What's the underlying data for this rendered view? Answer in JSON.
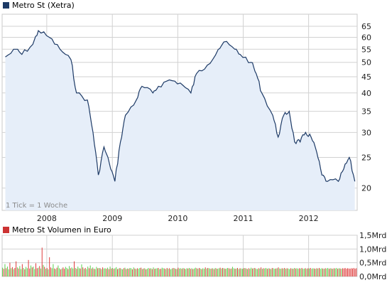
{
  "price_legend": "Metro St (Xetra)",
  "volume_legend": "Metro St Volumen in Euro",
  "tick_note": "1 Tick = 1 Woche",
  "colors": {
    "price_line": "#1d3a66",
    "price_fill": "#e6eef9",
    "volume_up": "#55cc44",
    "volume_down": "#dd3333",
    "grid": "#d2d2d2",
    "plot_bg": "#ffffff",
    "legend_price_swatch": "#1d3a66",
    "legend_volume_swatch": "#cc3333"
  },
  "chart_data": [
    {
      "type": "area",
      "title": "Metro St (Xetra)",
      "x_tick_labels": [
        "2008",
        "2009",
        "2010",
        "2011",
        "2012"
      ],
      "y_scale": "log",
      "y_ticks": [
        20,
        25,
        30,
        35,
        40,
        45,
        50,
        55,
        60,
        65
      ],
      "ylim": [
        17,
        71
      ],
      "xlim": [
        "2007-04-27",
        "2012-09-28"
      ],
      "grid": true,
      "x": [
        "2007-05",
        "2007-07",
        "2007-08",
        "2007-10",
        "2007-11",
        "2008-01",
        "2008-03",
        "2008-05",
        "2008-06",
        "2008-08",
        "2008-09",
        "2008-10",
        "2008-11",
        "2008-12",
        "2009-01",
        "2009-02",
        "2009-03",
        "2009-05",
        "2009-06",
        "2009-08",
        "2009-09",
        "2009-11",
        "2010-01",
        "2010-03",
        "2010-04",
        "2010-06",
        "2010-08",
        "2010-09",
        "2010-11",
        "2010-12",
        "2011-02",
        "2011-03",
        "2011-04",
        "2011-06",
        "2011-07",
        "2011-08",
        "2011-09",
        "2011-10",
        "2011-11",
        "2011-12",
        "2012-01",
        "2012-02",
        "2012-03",
        "2012-04",
        "2012-06",
        "2012-07",
        "2012-08",
        "2012-09"
      ],
      "series": [
        {
          "values": [
            52,
            55,
            53,
            57,
            63,
            60,
            55,
            51,
            40,
            38,
            30,
            22,
            27,
            24,
            21,
            28,
            34,
            38,
            42,
            40,
            42,
            44,
            43,
            40,
            46,
            49,
            55,
            58,
            55,
            53,
            50,
            46,
            40,
            34,
            29,
            34,
            35,
            28,
            28,
            30,
            29,
            26,
            22,
            21,
            21,
            23,
            25,
            21
          ]
        }
      ]
    },
    {
      "type": "bar",
      "title": "Metro St Volumen in Euro",
      "y_tick_labels": [
        "0,0Mrd",
        "0,5Mrd",
        "1,0Mrd",
        "1,5Mrd"
      ],
      "y_unit": "Mrd Euro",
      "ylim": [
        0,
        1.5
      ],
      "grid": true,
      "xlim": [
        "2007-04-27",
        "2012-09-28"
      ],
      "series": [
        {
          "values": [
            0.32,
            0.28,
            0.45,
            0.3,
            0.36,
            0.26,
            0.5,
            0.3,
            0.34,
            0.27,
            0.31,
            0.55,
            0.33,
            0.29,
            0.38,
            0.27,
            0.45,
            0.31,
            0.26,
            0.35,
            0.3,
            0.6,
            0.29,
            0.4,
            0.33,
            0.36,
            0.27,
            0.48,
            0.3,
            0.32,
            0.38,
            0.29,
            1.05,
            0.42,
            0.35,
            0.28,
            0.31,
            0.26,
            0.7,
            0.33,
            0.3,
            0.45,
            0.29,
            0.27,
            0.32,
            0.4,
            0.3,
            0.26,
            0.29,
            0.33,
            0.28,
            0.35,
            0.31,
            0.27,
            0.38,
            0.3,
            0.33,
            0.29,
            0.55,
            0.31,
            0.28,
            0.36,
            0.3,
            0.29,
            0.44,
            0.33,
            0.28,
            0.31,
            0.27,
            0.36,
            0.3,
            0.4,
            0.29,
            0.33,
            0.28,
            0.27,
            0.35,
            0.3,
            0.31,
            0.3,
            0.27,
            0.33,
            0.29,
            0.3,
            0.28,
            0.32,
            0.27,
            0.36,
            0.29,
            0.31,
            0.28,
            0.3,
            0.34,
            0.27,
            0.29,
            0.31,
            0.28,
            0.26,
            0.3,
            0.32,
            0.27,
            0.29,
            0.28,
            0.31,
            0.3,
            0.26,
            0.33,
            0.29,
            0.27,
            0.3,
            0.28,
            0.31,
            0.32,
            0.27,
            0.29,
            0.3,
            0.26,
            0.28,
            0.31,
            0.29,
            0.3,
            0.27,
            0.33,
            0.28,
            0.29,
            0.3,
            0.31,
            0.27,
            0.28,
            0.32,
            0.3,
            0.29,
            0.27,
            0.31,
            0.28,
            0.3,
            0.26,
            0.29,
            0.31,
            0.3,
            0.28,
            0.27,
            0.32,
            0.29,
            0.3,
            0.28,
            0.31,
            0.29,
            0.27,
            0.3,
            0.29,
            0.31,
            0.28,
            0.3,
            0.27,
            0.29,
            0.32,
            0.3,
            0.28,
            0.31,
            0.29,
            0.27,
            0.3,
            0.28,
            0.33,
            0.29,
            0.31,
            0.3,
            0.28,
            0.29,
            0.3,
            0.27,
            0.31,
            0.29,
            0.28,
            0.3,
            0.32,
            0.29,
            0.31,
            0.3,
            0.28,
            0.29,
            0.31,
            0.3,
            0.28,
            0.29,
            0.35,
            0.3,
            0.28,
            0.29,
            0.31,
            0.27,
            0.3,
            0.29,
            0.28,
            0.3,
            0.31,
            0.29,
            0.27,
            0.3,
            0.28,
            0.32,
            0.29,
            0.3,
            0.31,
            0.28,
            0.27,
            0.3,
            0.29,
            0.33,
            0.28,
            0.3,
            0.29,
            0.31,
            0.28,
            0.3,
            0.29,
            0.27,
            0.31,
            0.3,
            0.28,
            0.29,
            0.3,
            0.33,
            0.29,
            0.28,
            0.3,
            0.29,
            0.31,
            0.28,
            0.3,
            0.29,
            0.27,
            0.3,
            0.29,
            0.28,
            0.31,
            0.29,
            0.3,
            0.28,
            0.3,
            0.29,
            0.31,
            0.28,
            0.29,
            0.3,
            0.28,
            0.3,
            0.29,
            0.31,
            0.28,
            0.3,
            0.29,
            0.28,
            0.3,
            0.29,
            0.31,
            0.28,
            0.3,
            0.29,
            0.28,
            0.3,
            0.29,
            0.31,
            0.28,
            0.3,
            0.29,
            0.28,
            0.3,
            0.29,
            0.31,
            0.28,
            0.3,
            0.29,
            0.28,
            0.3,
            0.29,
            0.31,
            0.28,
            0.3,
            0.29,
            0.28,
            0.3,
            0.29,
            0.31,
            0.28,
            0.3
          ],
          "up": [
            true,
            false,
            true,
            false,
            true,
            true,
            false,
            true,
            false,
            true,
            false,
            false,
            true,
            false,
            true,
            true,
            false,
            true,
            false,
            true,
            true,
            false,
            false,
            true,
            false,
            true,
            true,
            false,
            false,
            true,
            false,
            true,
            false,
            true,
            false,
            true,
            false,
            true,
            false,
            false,
            true,
            true,
            false,
            true,
            false,
            true,
            true,
            false,
            true,
            false,
            false,
            true,
            true,
            false,
            true,
            false,
            true,
            true,
            false,
            true,
            false,
            true,
            true,
            false,
            true,
            false,
            true,
            false,
            true,
            true,
            false,
            true,
            false,
            true,
            false,
            true,
            true,
            false,
            true,
            false,
            true,
            false,
            true,
            true,
            false,
            true,
            false,
            true,
            false,
            true,
            false,
            true,
            true,
            false,
            true,
            false,
            true,
            true,
            false,
            true,
            false,
            true,
            false,
            true,
            true,
            false,
            true,
            false,
            true,
            false,
            true,
            true,
            false,
            true,
            false,
            true,
            false,
            true,
            true,
            false,
            true,
            false,
            true,
            false,
            true,
            true,
            false,
            true,
            false,
            true,
            true,
            false,
            true,
            false,
            true,
            false,
            true,
            true,
            false,
            true,
            false,
            true,
            false,
            true,
            true,
            false,
            true,
            false,
            true,
            true,
            false,
            true,
            false,
            true,
            false,
            true,
            true,
            false,
            true,
            false,
            true,
            false,
            true,
            true,
            false,
            true,
            false,
            true,
            true,
            false,
            true,
            false,
            true,
            false,
            true,
            true,
            false,
            true,
            false,
            true,
            false,
            true,
            true,
            false,
            true,
            false,
            true,
            true,
            false,
            true,
            false,
            true,
            false,
            true,
            true,
            false,
            true,
            false,
            true,
            false,
            true,
            true,
            false,
            true,
            false,
            true,
            true,
            false,
            true,
            false,
            true,
            false,
            true,
            true,
            false,
            true,
            false,
            true,
            false,
            true,
            true,
            false,
            true,
            false,
            true,
            true,
            false,
            true,
            false,
            true,
            false,
            true,
            true,
            false,
            true,
            false,
            true,
            false,
            true,
            true,
            false,
            true,
            false,
            true,
            true,
            false,
            true,
            false,
            true,
            false,
            true,
            true,
            false,
            true,
            false,
            true,
            false,
            true,
            true,
            false,
            true,
            false,
            true,
            true,
            false,
            true,
            false,
            true,
            false,
            true,
            true,
            false,
            true,
            false,
            true,
            false
          ]
        }
      ]
    }
  ]
}
